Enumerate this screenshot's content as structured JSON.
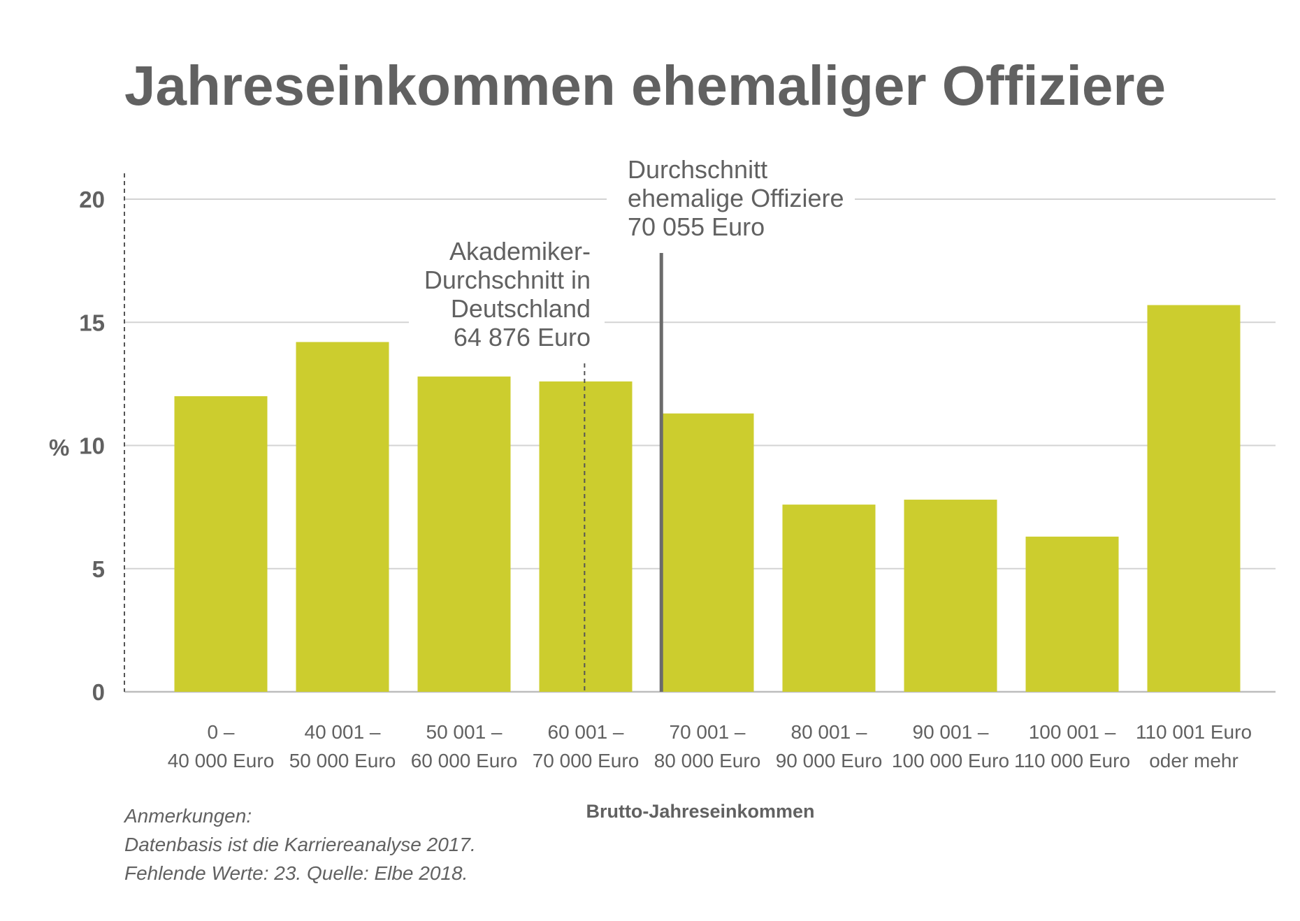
{
  "title": "Jahreseinkommen ehemaliger Offiziere",
  "colors": {
    "bar": "#cccd2e",
    "text": "#616161",
    "grid": "#d3d3d3",
    "axis": "#bdbdbd",
    "marker": "#6b6b6b"
  },
  "chart_data": {
    "type": "bar",
    "title": "Jahreseinkommen ehemaliger Offiziere",
    "xlabel": "Brutto-Jahreseinkommen",
    "ylabel": "%",
    "ylim": [
      0,
      20
    ],
    "yticks": [
      0,
      5,
      10,
      15,
      20
    ],
    "grid": true,
    "categories": [
      [
        "0 –",
        "40 000 Euro"
      ],
      [
        "40 001 –",
        "50 000 Euro"
      ],
      [
        "50 001 –",
        "60 000 Euro"
      ],
      [
        "60 001 –",
        "70 000 Euro"
      ],
      [
        "70 001 –",
        "80 000 Euro"
      ],
      [
        "80 001 –",
        "90 000 Euro"
      ],
      [
        "90 001 –",
        "100 000 Euro"
      ],
      [
        "100 001 –",
        "110 000 Euro"
      ],
      [
        "110 001 Euro",
        "oder mehr"
      ]
    ],
    "values": [
      12.0,
      14.2,
      12.8,
      12.6,
      11.3,
      7.6,
      7.8,
      6.3,
      15.7
    ],
    "annotations": [
      {
        "id": "akademiker",
        "x_value": 64876,
        "style": "dashed",
        "lines": [
          "Akademiker-",
          "Durchschnitt in",
          "Deutschland",
          "64 876 Euro"
        ]
      },
      {
        "id": "offiziere",
        "x_value": 70055,
        "style": "solid",
        "lines": [
          "Durchschnitt",
          "ehemalige Offiziere",
          "70 055 Euro"
        ]
      }
    ]
  },
  "notes": [
    "Anmerkungen:",
    "Datenbasis ist die Karriereanalyse 2017.",
    "Fehlende Werte: 23. Quelle: Elbe 2018."
  ]
}
